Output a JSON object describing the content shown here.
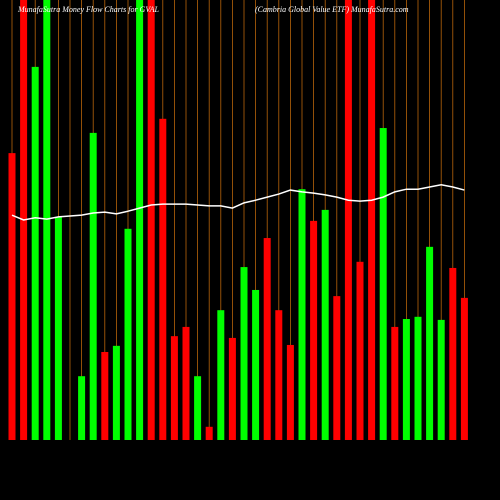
{
  "chart_data": {
    "type": "bar",
    "title": "MunafaSutra  Money Flow  Charts for GVAL",
    "subtitle": "(Cambria  Global Value  ETF) MunafaSutra.com",
    "ylim": [
      0,
      100
    ],
    "guide_color": "#b8650a",
    "line_color": "#ffffff",
    "series": [
      {
        "values": [
          65.2,
          100,
          84.8,
          100,
          50.7,
          0,
          14.5,
          69.8,
          20,
          21.4,
          48,
          100,
          100,
          73,
          23.6,
          25.7,
          14.5,
          3,
          29.5,
          23.2,
          39.3,
          34.1,
          45.9,
          29.5,
          21.6,
          57,
          49.8,
          52.3,
          32.7,
          100,
          40.5,
          100,
          70.9,
          25.7,
          27.5,
          28,
          43.9,
          27.3,
          39.1,
          32.3
        ],
        "colors": [
          "#ff0000",
          "#ff0000",
          "#00ff00",
          "#00ff00",
          "#00ff00",
          "#00ff00",
          "#00ff00",
          "#00ff00",
          "#ff0000",
          "#00ff00",
          "#00ff00",
          "#00ff00",
          "#ff0000",
          "#ff0000",
          "#ff0000",
          "#ff0000",
          "#00ff00",
          "#ff0000",
          "#00ff00",
          "#ff0000",
          "#00ff00",
          "#00ff00",
          "#ff0000",
          "#ff0000",
          "#ff0000",
          "#00ff00",
          "#ff0000",
          "#00ff00",
          "#ff0000",
          "#ff0000",
          "#ff0000",
          "#ff0000",
          "#00ff00",
          "#ff0000",
          "#00ff00",
          "#00ff00",
          "#00ff00",
          "#00ff00",
          "#ff0000",
          "#ff0000"
        ]
      },
      {
        "values": [
          51.1,
          50,
          50.5,
          50.2,
          50.7,
          50.9,
          51.1,
          51.6,
          51.8,
          51.4,
          52,
          52.7,
          53.4,
          53.6,
          53.6,
          53.6,
          53.4,
          53.2,
          53.2,
          52.7,
          53.9,
          54.5,
          55.2,
          55.9,
          56.8,
          56.4,
          56.1,
          55.7,
          55.2,
          54.5,
          54.3,
          54.5,
          55.2,
          56.4,
          57,
          57,
          57.5,
          58,
          57.5,
          56.8
        ]
      }
    ]
  }
}
